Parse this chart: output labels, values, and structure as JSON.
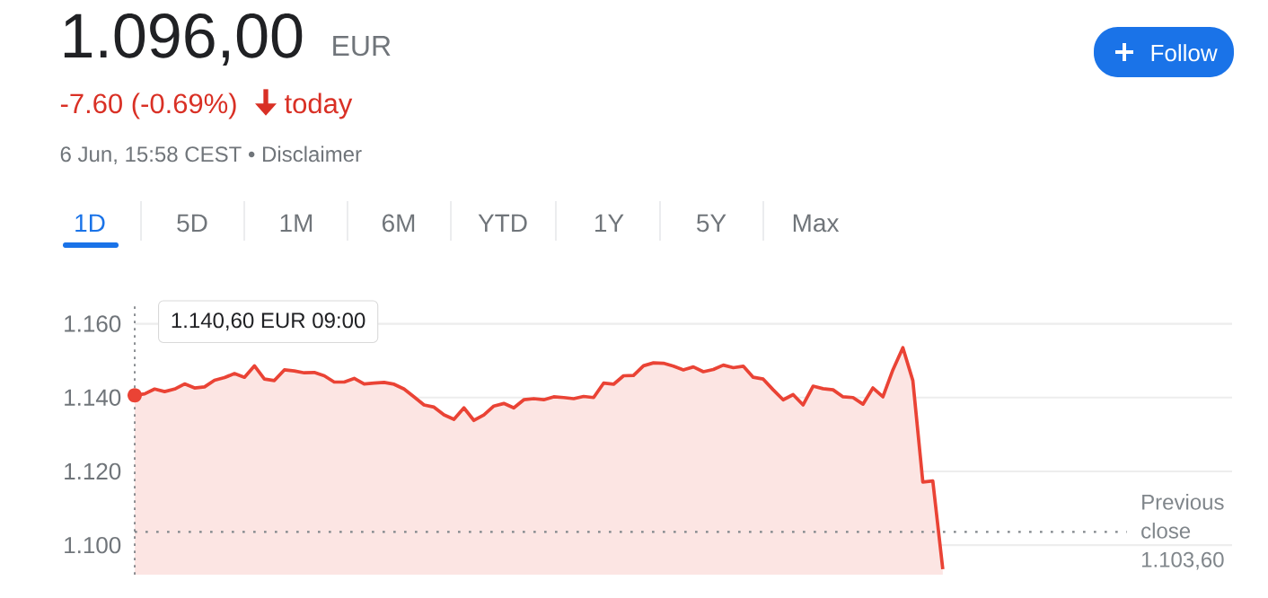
{
  "chart_data": {
    "type": "area",
    "title": "1.096,00",
    "annotations": [
      "EUR",
      "-7.60 (-0.69%)",
      "today",
      "6 Jun, 15:58 CEST • Disclaimer",
      "1D",
      "5D",
      "1M",
      "6M",
      "YTD",
      "1Y",
      "5Y",
      "Max",
      "Follow",
      "1.140,60 EUR 09:00"
    ],
    "categories": [
      null,
      null,
      null,
      null,
      null,
      null,
      null,
      null,
      null,
      null,
      null,
      null,
      null,
      null,
      null,
      null,
      null,
      null,
      null,
      null,
      null,
      null,
      null,
      null,
      null,
      null,
      null,
      null,
      null,
      null,
      null,
      null,
      null,
      null,
      null,
      null,
      null,
      null,
      null,
      null,
      null,
      null,
      null,
      null,
      null,
      null,
      null,
      null,
      null,
      null,
      null,
      null,
      null,
      null,
      null,
      null,
      null,
      null,
      null,
      null,
      null,
      null,
      null,
      null,
      null,
      null,
      null,
      null,
      null,
      null,
      null,
      null,
      null,
      null,
      null,
      null,
      null,
      null,
      null,
      null,
      null,
      null,
      null,
      null,
      null,
      null,
      null,
      null,
      null,
      null,
      null,
      null,
      null,
      null,
      null,
      null,
      null,
      null,
      null,
      null,
      null,
      null,
      null,
      null,
      null,
      null,
      null,
      null,
      null,
      null,
      null
    ],
    "values": [
      1140.6,
      1141.0,
      1142.3,
      1141.6,
      1142.3,
      1143.7,
      1142.6,
      1142.9,
      1144.7,
      1145.4,
      1146.5,
      1145.5,
      1148.6,
      1145.0,
      1144.6,
      1147.5,
      1147.2,
      1146.7,
      1146.8,
      1145.9,
      1144.2,
      1144.2,
      1145.2,
      1143.7,
      1143.9,
      1144.1,
      1143.6,
      1142.3,
      1140.2,
      1138.0,
      1137.4,
      1135.3,
      1134.1,
      1137.2,
      1133.8,
      1135.3,
      1137.7,
      1138.4,
      1137.2,
      1139.4,
      1139.7,
      1139.4,
      1140.2,
      1140.0,
      1139.7,
      1140.3,
      1140.0,
      1143.9,
      1143.6,
      1145.9,
      1146.0,
      1148.6,
      1149.4,
      1149.3,
      1148.5,
      1147.5,
      1148.3,
      1147.0,
      1147.6,
      1148.8,
      1148.1,
      1148.5,
      1145.5,
      1145.0,
      1142.1,
      1139.4,
      1140.8,
      1138.0,
      1143.1,
      1142.4,
      1142.1,
      1140.2,
      1140.0,
      1138.2,
      1142.6,
      1140.2,
      1147.5,
      1153.5,
      1144.6,
      1117.1,
      1117.4,
      1093.5,
      null,
      null,
      null,
      null,
      null,
      null,
      null,
      null,
      null,
      null,
      null,
      null,
      null,
      null,
      null,
      null,
      null,
      null,
      null,
      null,
      null,
      null,
      null,
      null,
      null,
      null,
      null,
      null,
      null
    ],
    "color": "#ea4335",
    "ylim": [
      1092,
      1165
    ],
    "yticks": [
      {
        "value": 1100,
        "label": "1.100"
      },
      {
        "value": 1120,
        "label": "1.120"
      },
      {
        "value": 1140,
        "label": "1.140"
      },
      {
        "value": 1160,
        "label": "1.160"
      }
    ],
    "grid": "y",
    "tick_labels": "y",
    "ref_lines": [
      {
        "axis": "y",
        "value": 1103.6,
        "label": "Previous close 1.103,60",
        "line_style": "dotted",
        "color": "#80868b"
      }
    ]
  }
}
